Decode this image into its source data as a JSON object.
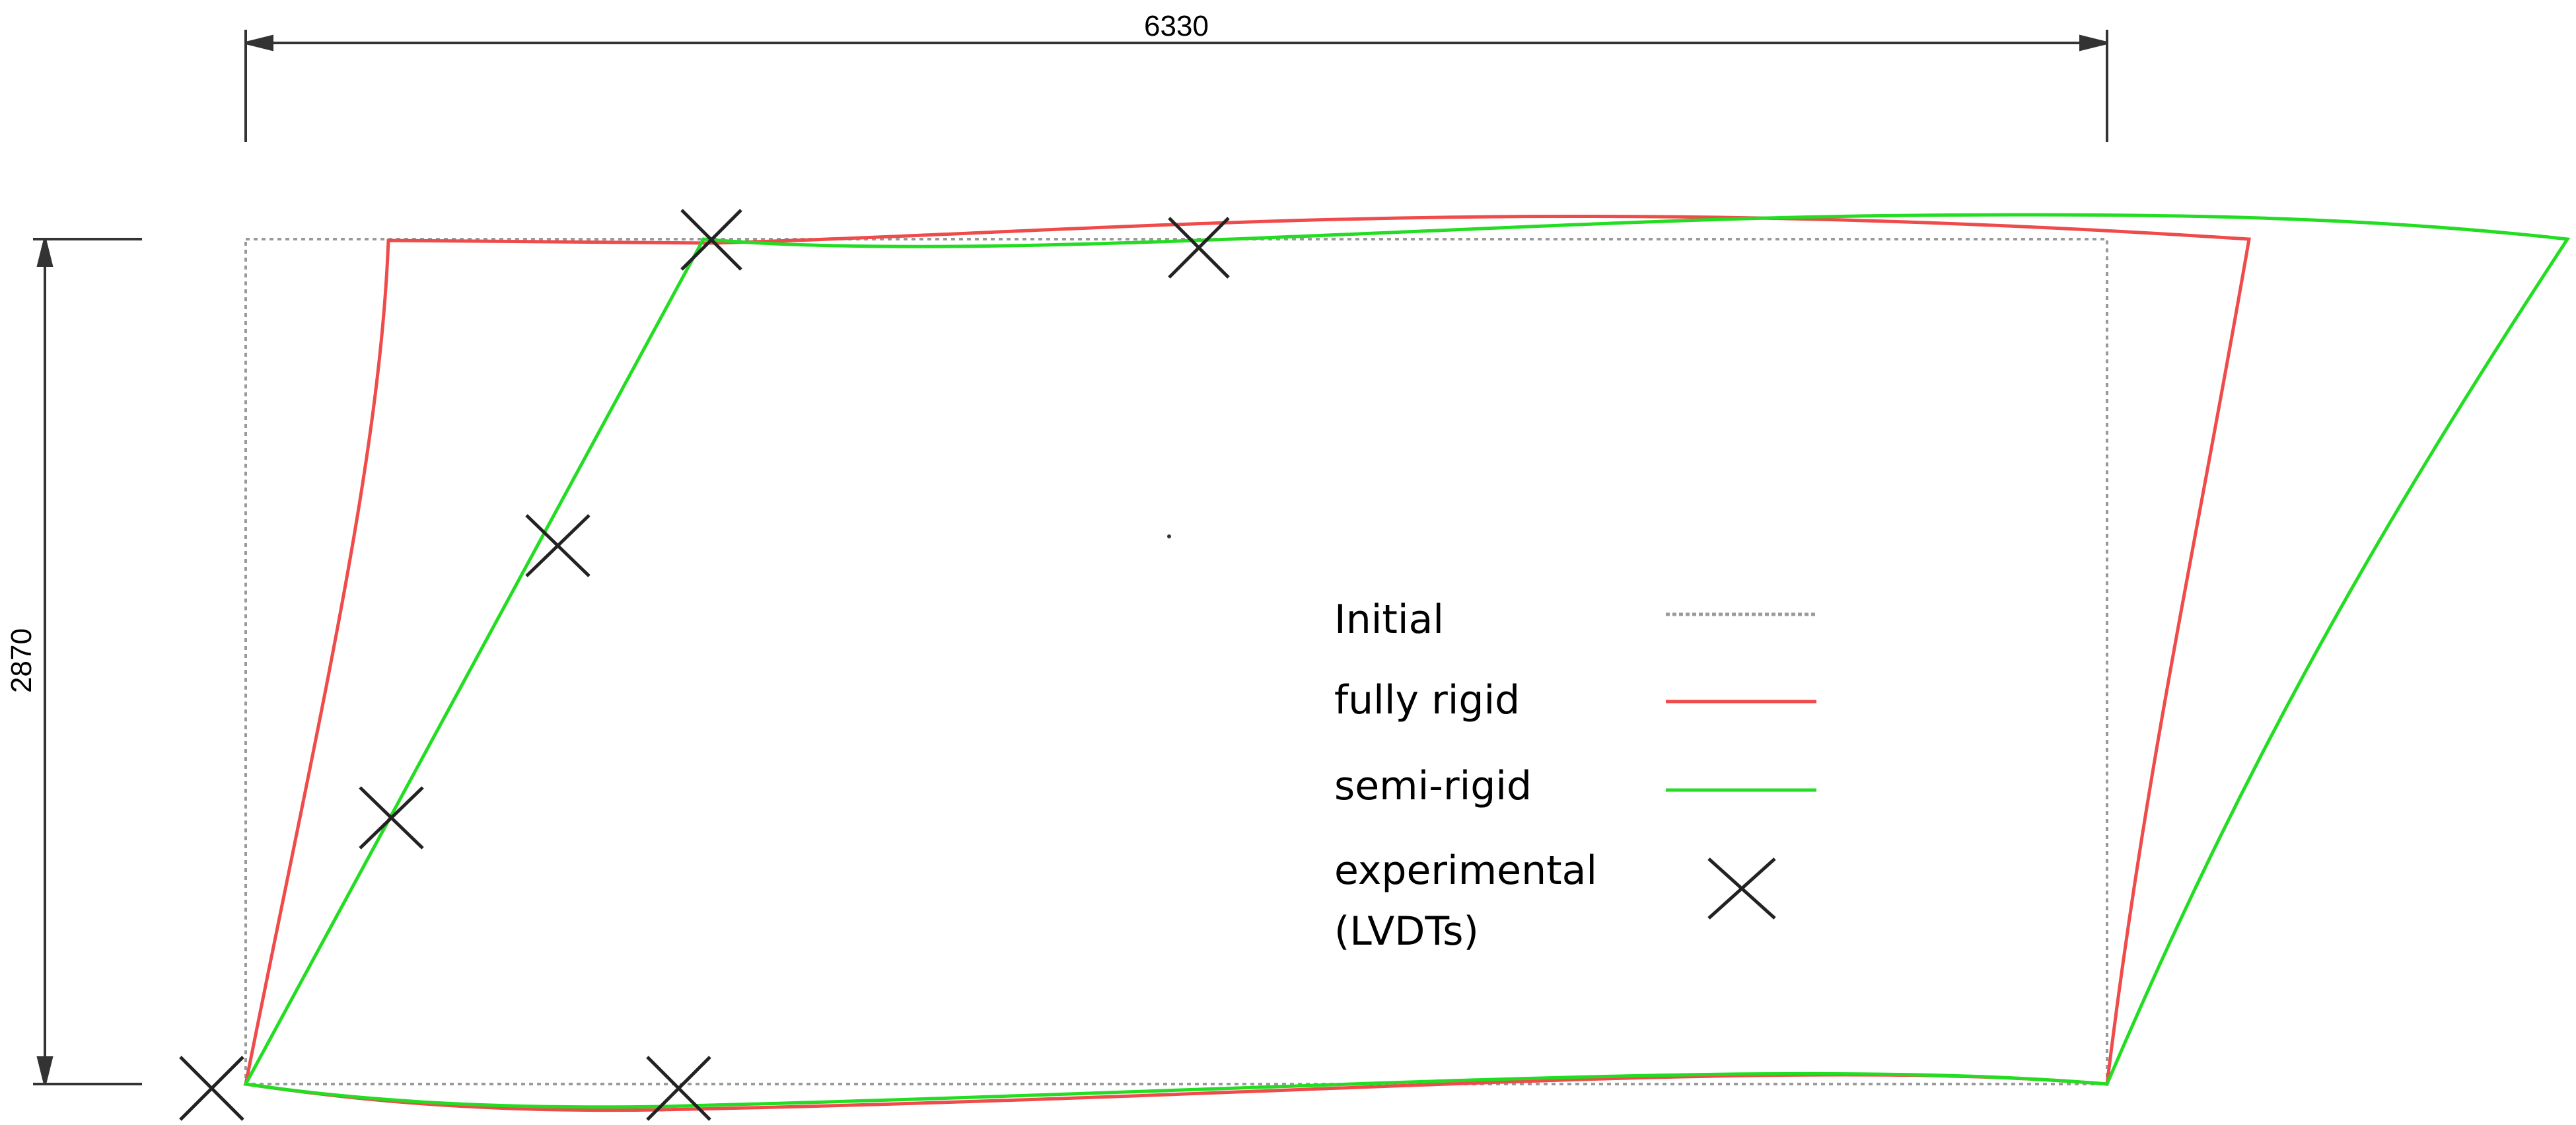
{
  "dimensions": {
    "width_label": "6330",
    "height_label": "2870"
  },
  "legend": {
    "initial": {
      "label": "Initial",
      "color": "#9a9a9a",
      "style": "dotted"
    },
    "fully_rigid": {
      "label": "fully rigid",
      "color": "#ef4b4b",
      "style": "solid"
    },
    "semi_rigid": {
      "label": "semi-rigid",
      "color": "#22dd22",
      "style": "solid"
    },
    "experimental": {
      "label_line1": "experimental",
      "label_line2": "(LVDTs)",
      "marker": "x-icon",
      "color": "#1a1a1a"
    }
  }
}
